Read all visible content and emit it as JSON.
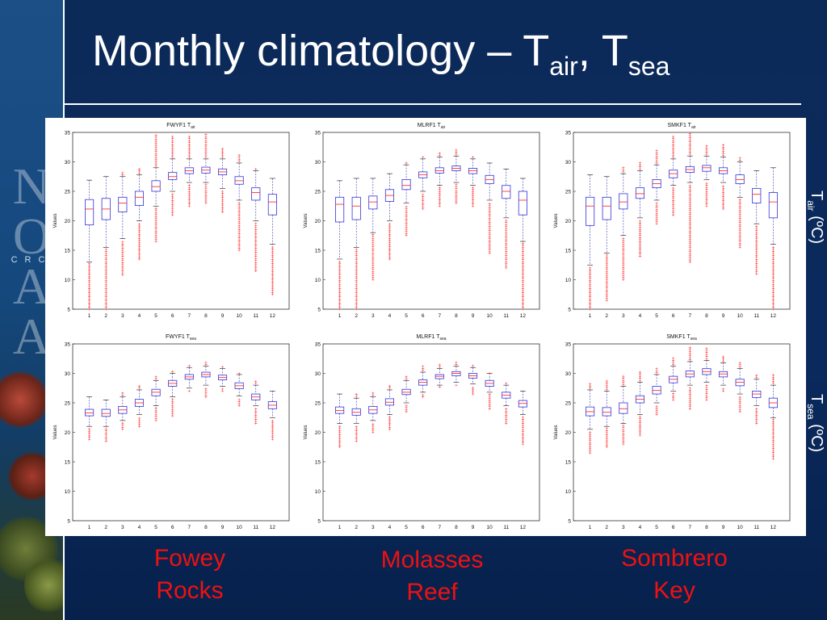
{
  "slide": {
    "title_main": "Monthly climatology – T",
    "title_sub1": "air",
    "title_sep": ", T",
    "title_sub2": "sea",
    "label_air_main": "T",
    "label_air_sub": "air",
    "label_air_unit": " (ºC)",
    "label_sea_main": "T",
    "label_sea_sub": "sea",
    "label_sea_unit": " (ºC)",
    "sites": [
      {
        "line1": "Fowey",
        "line2": "Rocks"
      },
      {
        "line1": "Molasses",
        "line2": "Reef"
      },
      {
        "line1": "Sombrero",
        "line2": "Key"
      }
    ],
    "sidebar_letters": "N\nO\nA\nA",
    "sidebar_crc": "CRC"
  },
  "colors": {
    "box": "#3333dd",
    "whisker": "#3333aa",
    "median": "#ff3333",
    "outlier": "#ff3333",
    "site_label": "#ee1111"
  },
  "chart_data": [
    {
      "type": "box",
      "station": "FWYF1",
      "var": "air",
      "title": "FWYF1 T",
      "title_sub": "air",
      "ylabel": "Values",
      "ylim": [
        5,
        35
      ],
      "x": [
        1,
        2,
        3,
        4,
        5,
        6,
        7,
        8,
        9,
        10,
        11,
        12
      ],
      "ytick": [
        5,
        10,
        15,
        20,
        25,
        30,
        35
      ],
      "boxes": [
        {
          "lw": 13,
          "q1": 19.3,
          "med": 22.0,
          "q3": 23.6,
          "uw": 26.9,
          "ol_lo": 5,
          "ol_hi": null
        },
        {
          "lw": 15.5,
          "q1": 20.2,
          "med": 22.0,
          "q3": 23.8,
          "uw": 27.5,
          "ol_lo": 5,
          "ol_hi": null
        },
        {
          "lw": 17,
          "q1": 21.5,
          "med": 23.0,
          "q3": 24.0,
          "uw": 27.5,
          "ol_lo": 10.8,
          "ol_hi": 28.3
        },
        {
          "lw": 20,
          "q1": 22.6,
          "med": 24.0,
          "q3": 25.0,
          "uw": 27.8,
          "ol_lo": 13.5,
          "ol_hi": 29.0
        },
        {
          "lw": 22.5,
          "q1": 25.0,
          "med": 25.8,
          "q3": 26.8,
          "uw": 29.0,
          "ol_lo": 16.5,
          "ol_hi": 34.8
        },
        {
          "lw": 25,
          "q1": 27.0,
          "med": 27.5,
          "q3": 28.2,
          "uw": 30.5,
          "ol_lo": 21.0,
          "ol_hi": 34.5
        },
        {
          "lw": 26.5,
          "q1": 28.0,
          "med": 28.5,
          "q3": 29.0,
          "uw": 30.5,
          "ol_lo": 22.5,
          "ol_hi": 34.5
        },
        {
          "lw": 26.5,
          "q1": 28.1,
          "med": 28.6,
          "q3": 29.1,
          "uw": 30.5,
          "ol_lo": 23.0,
          "ol_hi": 35.0
        },
        {
          "lw": 25.5,
          "q1": 27.8,
          "med": 28.3,
          "q3": 28.8,
          "uw": 30.5,
          "ol_lo": 21.5,
          "ol_hi": 32.5
        },
        {
          "lw": 23.5,
          "q1": 26.2,
          "med": 26.8,
          "q3": 27.5,
          "uw": 29.8,
          "ol_lo": 15.0,
          "ol_hi": 31.3
        },
        {
          "lw": 20,
          "q1": 23.5,
          "med": 24.8,
          "q3": 25.6,
          "uw": 28.5,
          "ol_lo": 11.5,
          "ol_hi": 29.0
        },
        {
          "lw": 16,
          "q1": 21.0,
          "med": 23.2,
          "q3": 24.5,
          "uw": 27.2,
          "ol_lo": 7.5,
          "ol_hi": null
        }
      ]
    },
    {
      "type": "box",
      "station": "MLRF1",
      "var": "air",
      "title": "MLRF1 T",
      "title_sub": "air",
      "ylabel": "Values",
      "ylim": [
        5,
        35
      ],
      "x": [
        1,
        2,
        3,
        4,
        5,
        6,
        7,
        8,
        9,
        10,
        11,
        12
      ],
      "ytick": [
        5,
        10,
        15,
        20,
        25,
        30,
        35
      ],
      "boxes": [
        {
          "lw": 13.5,
          "q1": 19.8,
          "med": 22.8,
          "q3": 24.0,
          "uw": 26.8,
          "ol_lo": 5,
          "ol_hi": null
        },
        {
          "lw": 15.5,
          "q1": 20.2,
          "med": 22.5,
          "q3": 24.0,
          "uw": 27.2,
          "ol_lo": 5,
          "ol_hi": null
        },
        {
          "lw": 18,
          "q1": 22.0,
          "med": 23.2,
          "q3": 24.2,
          "uw": 27.2,
          "ol_lo": 10.0,
          "ol_hi": null
        },
        {
          "lw": 20,
          "q1": 23.3,
          "med": 24.3,
          "q3": 25.3,
          "uw": 28.0,
          "ol_lo": 13.5,
          "ol_hi": null
        },
        {
          "lw": 23,
          "q1": 25.3,
          "med": 26.0,
          "q3": 27.0,
          "uw": 29.5,
          "ol_lo": 17.5,
          "ol_hi": 30.0
        },
        {
          "lw": 25,
          "q1": 27.3,
          "med": 27.8,
          "q3": 28.3,
          "uw": 30.5,
          "ol_lo": 22.0,
          "ol_hi": 31.0
        },
        {
          "lw": 26,
          "q1": 28.1,
          "med": 28.5,
          "q3": 29.0,
          "uw": 30.8,
          "ol_lo": 22.5,
          "ol_hi": 31.5
        },
        {
          "lw": 26.5,
          "q1": 28.5,
          "med": 28.9,
          "q3": 29.3,
          "uw": 31.0,
          "ol_lo": 23.0,
          "ol_hi": 32.0
        },
        {
          "lw": 26,
          "q1": 28.0,
          "med": 28.5,
          "q3": 28.9,
          "uw": 30.5,
          "ol_lo": 22.5,
          "ol_hi": 31.0
        },
        {
          "lw": 23.5,
          "q1": 26.3,
          "med": 27.0,
          "q3": 27.7,
          "uw": 29.8,
          "ol_lo": 14.5,
          "ol_hi": null
        },
        {
          "lw": 20.5,
          "q1": 23.8,
          "med": 25.0,
          "q3": 26.0,
          "uw": 28.8,
          "ol_lo": 12.0,
          "ol_hi": null
        },
        {
          "lw": 16.5,
          "q1": 21.0,
          "med": 23.5,
          "q3": 25.0,
          "uw": 27.2,
          "ol_lo": 5,
          "ol_hi": null
        }
      ]
    },
    {
      "type": "box",
      "station": "SMKF1",
      "var": "air",
      "title": "SMKF1 T",
      "title_sub": "air",
      "ylabel": "Values",
      "ylim": [
        5,
        35
      ],
      "x": [
        1,
        2,
        3,
        4,
        5,
        6,
        7,
        8,
        9,
        10,
        11,
        12
      ],
      "ytick": [
        5,
        10,
        15,
        20,
        25,
        30,
        35
      ],
      "boxes": [
        {
          "lw": 12.5,
          "q1": 19.2,
          "med": 22.5,
          "q3": 24.0,
          "uw": 27.8,
          "ol_lo": 5,
          "ol_hi": null
        },
        {
          "lw": 14.5,
          "q1": 20.2,
          "med": 22.5,
          "q3": 24.0,
          "uw": 27.5,
          "ol_lo": 6.5,
          "ol_hi": null
        },
        {
          "lw": 17.5,
          "q1": 22.0,
          "med": 23.2,
          "q3": 24.6,
          "uw": 28.0,
          "ol_lo": 10.0,
          "ol_hi": 29.2
        },
        {
          "lw": 20.5,
          "q1": 23.8,
          "med": 24.6,
          "q3": 25.6,
          "uw": 28.5,
          "ol_lo": 14.0,
          "ol_hi": 30.0
        },
        {
          "lw": 23.5,
          "q1": 25.6,
          "med": 26.3,
          "q3": 27.0,
          "uw": 29.5,
          "ol_lo": 19.5,
          "ol_hi": 32.0
        },
        {
          "lw": 26,
          "q1": 27.3,
          "med": 28.0,
          "q3": 28.6,
          "uw": 30.5,
          "ol_lo": 21.0,
          "ol_hi": 34.5
        },
        {
          "lw": 26.5,
          "q1": 28.2,
          "med": 28.7,
          "q3": 29.2,
          "uw": 31.0,
          "ol_lo": 13.0,
          "ol_hi": 35.0
        },
        {
          "lw": 27,
          "q1": 28.4,
          "med": 29.0,
          "q3": 29.4,
          "uw": 31.0,
          "ol_lo": 22.5,
          "ol_hi": 33.0
        },
        {
          "lw": 26.5,
          "q1": 28.0,
          "med": 28.5,
          "q3": 29.0,
          "uw": 30.8,
          "ol_lo": 22.0,
          "ol_hi": 33.0
        },
        {
          "lw": 24,
          "q1": 26.3,
          "med": 27.0,
          "q3": 27.8,
          "uw": 30.0,
          "ol_lo": 15.5,
          "ol_hi": 31.0
        },
        {
          "lw": 19.5,
          "q1": 23.0,
          "med": 24.5,
          "q3": 25.5,
          "uw": 28.5,
          "ol_lo": 11.0,
          "ol_hi": null
        },
        {
          "lw": 16,
          "q1": 20.5,
          "med": 23.2,
          "q3": 24.8,
          "uw": 29.0,
          "ol_lo": 5,
          "ol_hi": null
        }
      ]
    },
    {
      "type": "box",
      "station": "FWYF1",
      "var": "sea",
      "title": "FWYF1 T",
      "title_sub": "sea",
      "ylabel": "Values",
      "ylim": [
        5,
        35
      ],
      "x": [
        1,
        2,
        3,
        4,
        5,
        6,
        7,
        8,
        9,
        10,
        11,
        12
      ],
      "ytick": [
        5,
        10,
        15,
        20,
        25,
        30,
        35
      ],
      "boxes": [
        {
          "lw": 21,
          "q1": 22.8,
          "med": 23.3,
          "q3": 23.9,
          "uw": 26.0,
          "ol_lo": 18.8,
          "ol_hi": null
        },
        {
          "lw": 21,
          "q1": 22.7,
          "med": 23.2,
          "q3": 23.9,
          "uw": 25.5,
          "ol_lo": 18.5,
          "ol_hi": null
        },
        {
          "lw": 22,
          "q1": 23.2,
          "med": 23.8,
          "q3": 24.4,
          "uw": 26.0,
          "ol_lo": 20.5,
          "ol_hi": 26.8
        },
        {
          "lw": 23,
          "q1": 24.4,
          "med": 25.0,
          "q3": 25.6,
          "uw": 27.2,
          "ol_lo": 21.0,
          "ol_hi": 28.0
        },
        {
          "lw": 24.5,
          "q1": 26.2,
          "med": 26.8,
          "q3": 27.3,
          "uw": 28.8,
          "ol_lo": 22.0,
          "ol_hi": 29.5
        },
        {
          "lw": 26,
          "q1": 27.8,
          "med": 28.3,
          "q3": 28.8,
          "uw": 30.0,
          "ol_lo": 22.8,
          "ol_hi": 30.5
        },
        {
          "lw": 27.5,
          "q1": 29.0,
          "med": 29.4,
          "q3": 29.8,
          "uw": 31.0,
          "ol_lo": 27.0,
          "ol_hi": 31.5
        },
        {
          "lw": 28,
          "q1": 29.4,
          "med": 29.8,
          "q3": 30.2,
          "uw": 31.2,
          "ol_lo": 26.0,
          "ol_hi": 32.0
        },
        {
          "lw": 27.8,
          "q1": 28.9,
          "med": 29.3,
          "q3": 29.7,
          "uw": 30.8,
          "ol_lo": 27.0,
          "ol_hi": 31.2
        },
        {
          "lw": 26.2,
          "q1": 27.4,
          "med": 27.9,
          "q3": 28.4,
          "uw": 29.8,
          "ol_lo": 24.5,
          "ol_hi": 30.0
        },
        {
          "lw": 24.5,
          "q1": 25.5,
          "med": 26.0,
          "q3": 26.5,
          "uw": 28.0,
          "ol_lo": 21.5,
          "ol_hi": 28.8
        },
        {
          "lw": 22.5,
          "q1": 24.0,
          "med": 24.6,
          "q3": 25.2,
          "uw": 27.0,
          "ol_lo": 18.8,
          "ol_hi": null
        }
      ]
    },
    {
      "type": "box",
      "station": "MLRF1",
      "var": "sea",
      "title": "MLRF1 T",
      "title_sub": "sea",
      "ylabel": "Values",
      "ylim": [
        5,
        35
      ],
      "x": [
        1,
        2,
        3,
        4,
        5,
        6,
        7,
        8,
        9,
        10,
        11,
        12
      ],
      "ytick": [
        5,
        10,
        15,
        20,
        25,
        30,
        35
      ],
      "boxes": [
        {
          "lw": 21.5,
          "q1": 23.2,
          "med": 23.7,
          "q3": 24.3,
          "uw": 26.5,
          "ol_lo": 17.5,
          "ol_hi": null
        },
        {
          "lw": 21.5,
          "q1": 22.9,
          "med": 23.4,
          "q3": 24.0,
          "uw": 25.8,
          "ol_lo": 18.5,
          "ol_hi": 26.5
        },
        {
          "lw": 22,
          "q1": 23.2,
          "med": 23.8,
          "q3": 24.4,
          "uw": 26.0,
          "ol_lo": 20.0,
          "ol_hi": 27.0
        },
        {
          "lw": 23,
          "q1": 24.6,
          "med": 25.1,
          "q3": 25.7,
          "uw": 27.2,
          "ol_lo": 20.5,
          "ol_hi": 28.2
        },
        {
          "lw": 25,
          "q1": 26.4,
          "med": 26.8,
          "q3": 27.3,
          "uw": 28.8,
          "ol_lo": 23.5,
          "ol_hi": 29.5
        },
        {
          "lw": 26.8,
          "q1": 28.0,
          "med": 28.5,
          "q3": 28.9,
          "uw": 30.2,
          "ol_lo": 26.0,
          "ol_hi": 31.5
        },
        {
          "lw": 28,
          "q1": 29.1,
          "med": 29.5,
          "q3": 29.8,
          "uw": 30.8,
          "ol_lo": 28.0,
          "ol_hi": 31.5
        },
        {
          "lw": 28.5,
          "q1": 29.6,
          "med": 30.0,
          "q3": 30.3,
          "uw": 31.2,
          "ol_lo": 28.0,
          "ol_hi": 32.0
        },
        {
          "lw": 28.2,
          "q1": 29.2,
          "med": 29.6,
          "q3": 30.0,
          "uw": 31.0,
          "ol_lo": 26.5,
          "ol_hi": 31.5
        },
        {
          "lw": 26.8,
          "q1": 27.8,
          "med": 28.3,
          "q3": 28.8,
          "uw": 30.0,
          "ol_lo": 24.0,
          "ol_hi": 30.0
        },
        {
          "lw": 24.5,
          "q1": 25.8,
          "med": 26.3,
          "q3": 26.8,
          "uw": 28.0,
          "ol_lo": 21.5,
          "ol_hi": 28.5
        },
        {
          "lw": 23,
          "q1": 24.3,
          "med": 24.9,
          "q3": 25.4,
          "uw": 27.0,
          "ol_lo": 18.0,
          "ol_hi": null
        }
      ]
    },
    {
      "type": "box",
      "station": "SMKF1",
      "var": "sea",
      "title": "SMKF1 T",
      "title_sub": "sea",
      "ylabel": "Values",
      "ylim": [
        5,
        35
      ],
      "x": [
        1,
        2,
        3,
        4,
        5,
        6,
        7,
        8,
        9,
        10,
        11,
        12
      ],
      "ytick": [
        5,
        10,
        15,
        20,
        25,
        30,
        35
      ],
      "boxes": [
        {
          "lw": 20.5,
          "q1": 22.8,
          "med": 23.5,
          "q3": 24.3,
          "uw": 27.2,
          "ol_lo": 16.5,
          "ol_hi": 28.5
        },
        {
          "lw": 21,
          "q1": 22.8,
          "med": 23.4,
          "q3": 24.2,
          "uw": 27.0,
          "ol_lo": 17.5,
          "ol_hi": 29.0
        },
        {
          "lw": 21.5,
          "q1": 23.2,
          "med": 24.0,
          "q3": 25.0,
          "uw": 27.8,
          "ol_lo": 18.0,
          "ol_hi": 29.8
        },
        {
          "lw": 23,
          "q1": 25.0,
          "med": 25.6,
          "q3": 26.2,
          "uw": 28.5,
          "ol_lo": 19.5,
          "ol_hi": 30.5
        },
        {
          "lw": 25,
          "q1": 26.5,
          "med": 27.1,
          "q3": 27.8,
          "uw": 29.8,
          "ol_lo": 23.0,
          "ol_hi": 31.0
        },
        {
          "lw": 27,
          "q1": 28.4,
          "med": 29.0,
          "q3": 29.5,
          "uw": 31.2,
          "ol_lo": 25.5,
          "ol_hi": 32.8
        },
        {
          "lw": 28,
          "q1": 29.4,
          "med": 29.9,
          "q3": 30.4,
          "uw": 32.0,
          "ol_lo": 24.0,
          "ol_hi": 34.5
        },
        {
          "lw": 28.5,
          "q1": 29.8,
          "med": 30.3,
          "q3": 30.8,
          "uw": 32.2,
          "ol_lo": 25.5,
          "ol_hi": 34.5
        },
        {
          "lw": 28,
          "q1": 29.4,
          "med": 29.9,
          "q3": 30.3,
          "uw": 31.8,
          "ol_lo": 27.0,
          "ol_hi": 33.0
        },
        {
          "lw": 26.5,
          "q1": 27.9,
          "med": 28.5,
          "q3": 29.0,
          "uw": 30.8,
          "ol_lo": 23.5,
          "ol_hi": 32.0
        },
        {
          "lw": 24.5,
          "q1": 25.9,
          "med": 26.5,
          "q3": 27.0,
          "uw": 29.0,
          "ol_lo": 21.5,
          "ol_hi": 30.0
        },
        {
          "lw": 22.5,
          "q1": 24.2,
          "med": 25.0,
          "q3": 25.8,
          "uw": 28.0,
          "ol_lo": 15.5,
          "ol_hi": 30.0
        }
      ]
    }
  ]
}
